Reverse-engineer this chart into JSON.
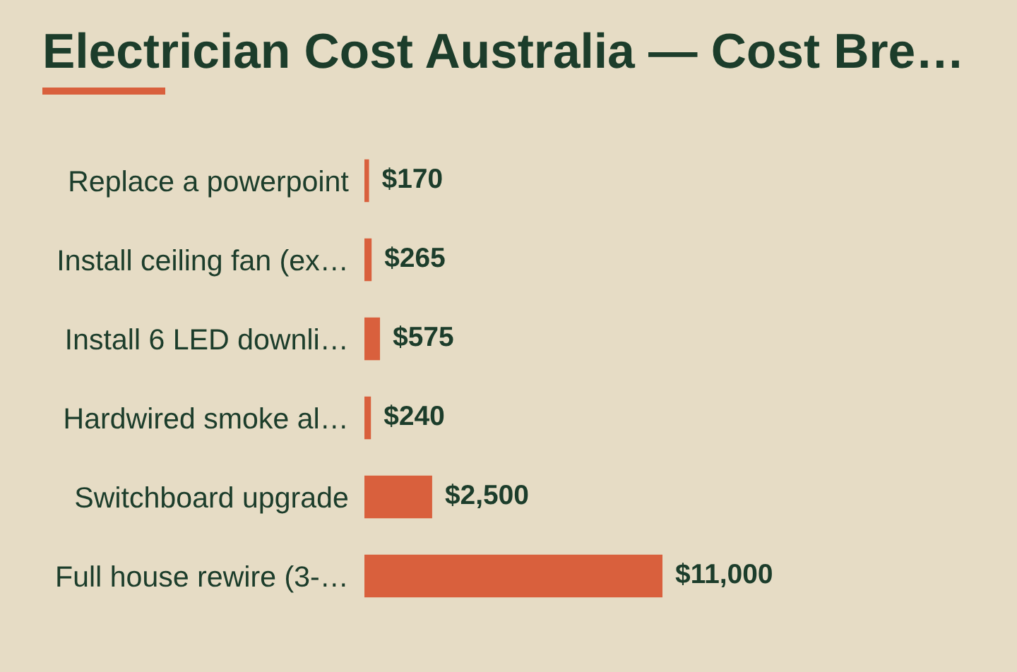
{
  "chart_data": {
    "type": "bar",
    "orientation": "horizontal",
    "title": "Electrician Cost Australia — Cost Bre…",
    "categories": [
      "Replace a powerpoint",
      "Install ceiling fan (ex…",
      "Install 6 LED downli…",
      "Hardwired smoke al…",
      "Switchboard upgrade",
      "Full house rewire (3-…"
    ],
    "values": [
      170,
      265,
      575,
      240,
      2500,
      11000
    ],
    "color": "#d9603d",
    "value_labels": [
      "$170",
      "$265",
      "$575",
      "$240",
      "$2,500",
      "$11,000"
    ]
  }
}
